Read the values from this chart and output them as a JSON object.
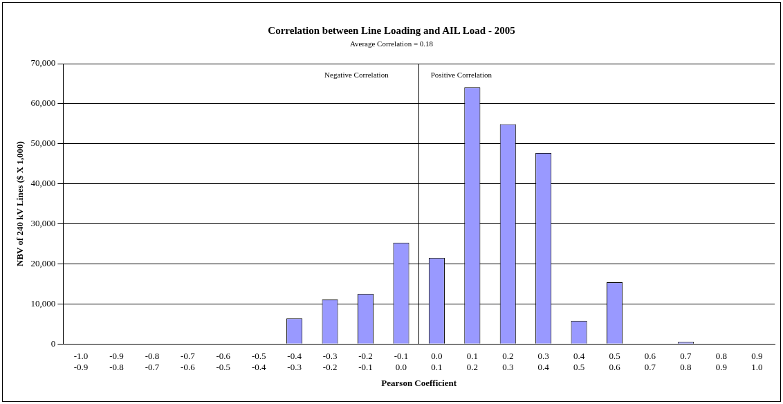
{
  "chart_data": {
    "type": "bar",
    "title": "Correlation between Line Loading and AIL Load - 2005",
    "subtitle": "Average Correlation = 0.18",
    "xlabel": "Pearson Coefficient",
    "ylabel": "NBV of 240 kV Lines ($ X 1,000)",
    "categories": [
      "-1.0\n-0.9",
      "-0.9\n-0.8",
      "-0.8\n-0.7",
      "-0.7\n-0.6",
      "-0.6\n-0.5",
      "-0.5\n-0.4",
      "-0.4\n-0.3",
      "-0.3\n-0.2",
      "-0.2\n-0.1",
      "-0.1\n0.0",
      "0.0\n0.1",
      "0.1\n0.2",
      "0.2\n0.3",
      "0.3\n0.4",
      "0.4\n0.5",
      "0.5\n0.6",
      "0.6\n0.7",
      "0.7\n0.8",
      "0.8\n0.9",
      "0.9\n1.0"
    ],
    "values": [
      0,
      0,
      0,
      0,
      0,
      0,
      6400,
      11100,
      12500,
      25300,
      21500,
      64100,
      54900,
      47700,
      5800,
      15400,
      0,
      500,
      0,
      0
    ],
    "color": "#9999ff",
    "ylim": [
      0,
      70000
    ],
    "yticks": [
      {
        "value": 0,
        "label": "0"
      },
      {
        "value": 10000,
        "label": "10,000"
      },
      {
        "value": 20000,
        "label": "20,000"
      },
      {
        "value": 30000,
        "label": "30,000"
      },
      {
        "value": 40000,
        "label": "40,000"
      },
      {
        "value": 50000,
        "label": "50,000"
      },
      {
        "value": 60000,
        "label": "60,000"
      },
      {
        "value": 70000,
        "label": "70,000"
      }
    ],
    "grid": "y",
    "legend": false,
    "annotations": [
      "Negative Correlation",
      "Positive Correlation"
    ]
  }
}
